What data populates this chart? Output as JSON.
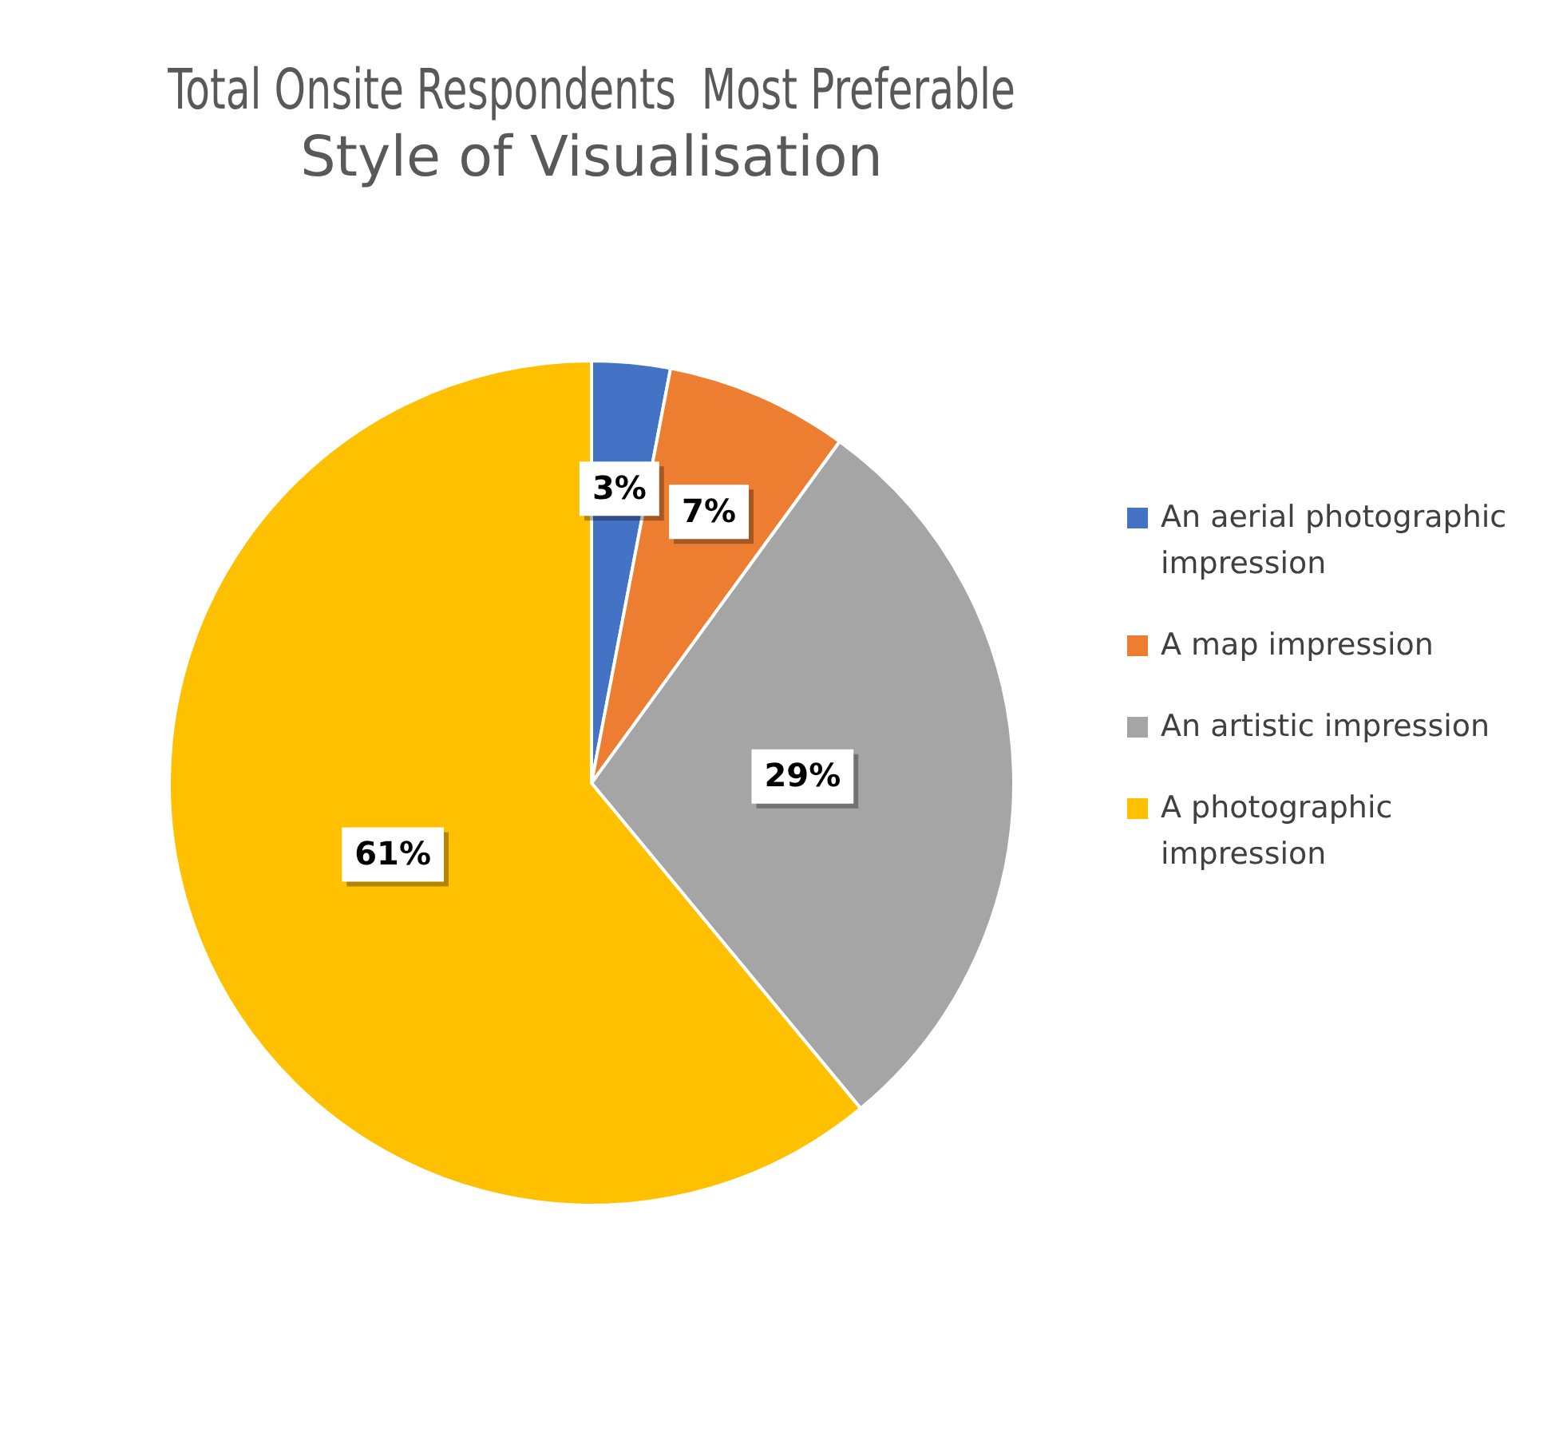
{
  "chart_data": {
    "type": "pie",
    "title": "Total Onsite Respondents  Most Preferable Style of Visualisation",
    "categories": [
      "An aerial photographic impression",
      "A map impression",
      "An artistic impression",
      "A photographic impression"
    ],
    "values": [
      3,
      7,
      29,
      61
    ],
    "colors": [
      "#4472c4",
      "#ed7d31",
      "#a5a5a5",
      "#ffc000"
    ],
    "value_labels": [
      "3%",
      "7%",
      "29%",
      "61%"
    ],
    "legend": "right"
  }
}
